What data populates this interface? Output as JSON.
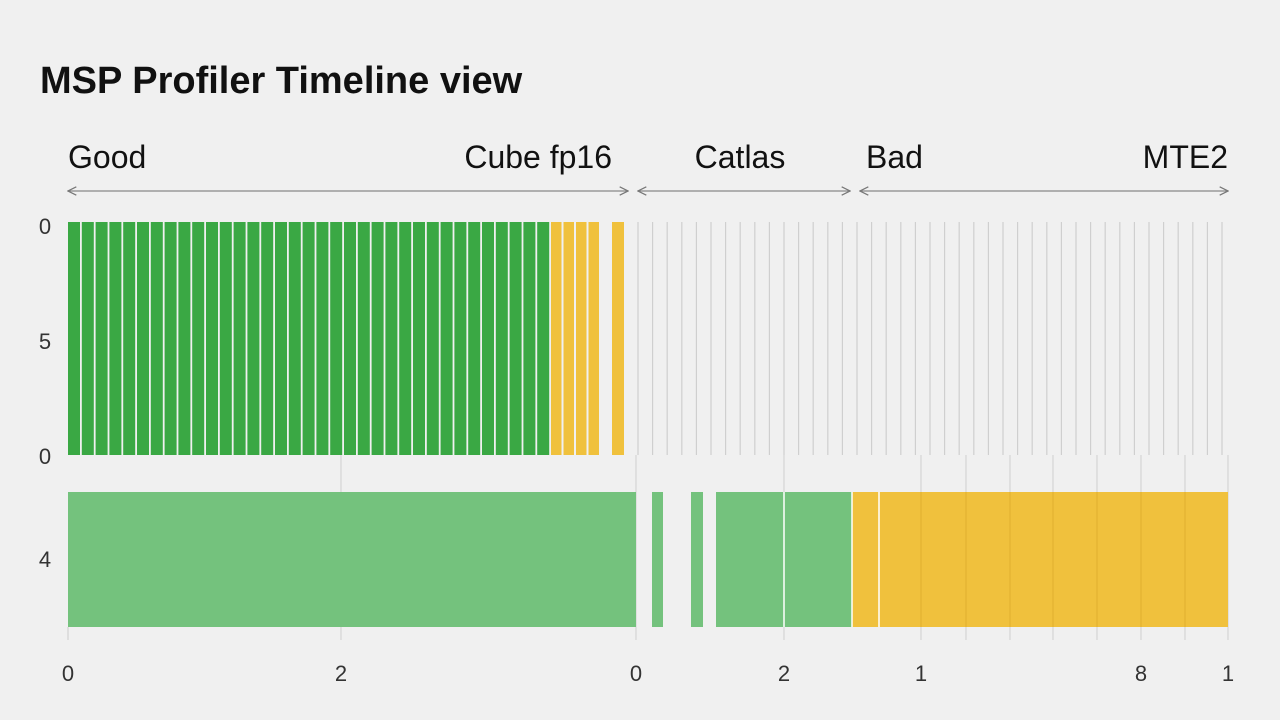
{
  "header": {
    "title": "MSP Profiler Timeline view"
  },
  "sections": [
    "Good",
    "Cube fp16",
    "Catlas",
    "Bad",
    "MTE2"
  ],
  "y_labels": [
    "0",
    "5",
    "0",
    "4"
  ],
  "x_labels": [
    "0",
    "2",
    "0",
    "2",
    "1",
    "8",
    "1"
  ]
}
